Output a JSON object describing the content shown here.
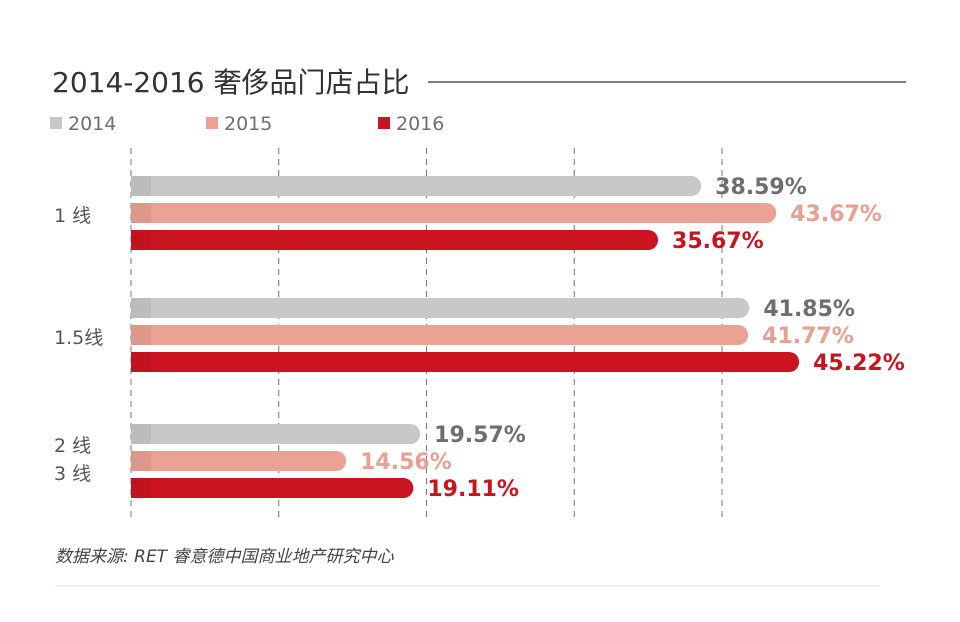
{
  "chart_data": {
    "type": "bar",
    "orientation": "horizontal",
    "title": "2014-2016 奢侈品门店占比",
    "categories": [
      "1 线",
      "1.5线",
      "2 线\n3 线"
    ],
    "series": [
      {
        "name": "2014",
        "color": "#c8c8c8",
        "label_color": "#6e6e6e",
        "values": [
          38.59,
          41.85,
          19.57
        ]
      },
      {
        "name": "2015",
        "color": "#eba295",
        "label_color": "#e8a092",
        "values": [
          43.67,
          41.77,
          14.56
        ]
      },
      {
        "name": "2016",
        "color": "#cc1421",
        "label_color": "#c8141f",
        "values": [
          35.67,
          45.22,
          19.11
        ]
      }
    ],
    "value_suffix": "%",
    "xlim": [
      0,
      50
    ],
    "grid": true,
    "legend_position": "top-left",
    "source": "数据来源: RET 睿意德中国商业地产研究中心"
  }
}
